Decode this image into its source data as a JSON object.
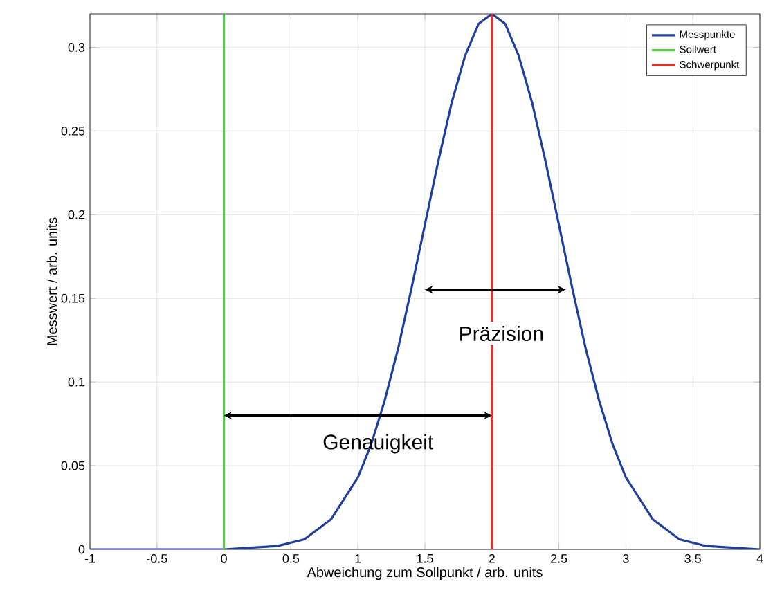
{
  "chart_data": {
    "type": "line",
    "xlabel": "Abweichung zum Sollpunkt / arb. units",
    "ylabel": "Messwert / arb. units",
    "xlim": [
      -1,
      4
    ],
    "ylim": [
      0,
      0.32
    ],
    "xticks": [
      -1,
      -0.5,
      0,
      0.5,
      1,
      1.5,
      2,
      2.5,
      3,
      3.5,
      4
    ],
    "yticks": [
      0,
      0.05,
      0.1,
      0.15,
      0.2,
      0.25,
      0.3
    ],
    "grid": true,
    "legend": "top right",
    "marker": "none",
    "line_style": "solid",
    "series": [
      {
        "name": "Messpunkte",
        "color": "#1f3fa0",
        "x": [
          -1,
          0,
          0.4,
          0.6,
          0.8,
          1.0,
          1.1,
          1.2,
          1.3,
          1.4,
          1.5,
          1.6,
          1.7,
          1.8,
          1.9,
          2.0,
          2.1,
          2.2,
          2.3,
          2.4,
          2.5,
          2.6,
          2.7,
          2.8,
          2.9,
          3.0,
          3.2,
          3.4,
          3.6,
          4
        ],
        "values": [
          0,
          0,
          0.002,
          0.006,
          0.018,
          0.043,
          0.063,
          0.089,
          0.12,
          0.156,
          0.194,
          0.232,
          0.267,
          0.295,
          0.314,
          0.32,
          0.314,
          0.295,
          0.267,
          0.232,
          0.194,
          0.156,
          0.12,
          0.089,
          0.063,
          0.043,
          0.018,
          0.006,
          0.002,
          0
        ]
      },
      {
        "name": "Sollwert",
        "color": "#5cc850",
        "x": [
          0,
          0
        ],
        "values": [
          0,
          0.32
        ]
      },
      {
        "name": "Schwerpunkt",
        "color": "#e8302a",
        "x": [
          2,
          2
        ],
        "values": [
          0,
          0.32
        ]
      }
    ],
    "annotations": [
      "Präzision",
      "Genauigkeit"
    ]
  }
}
